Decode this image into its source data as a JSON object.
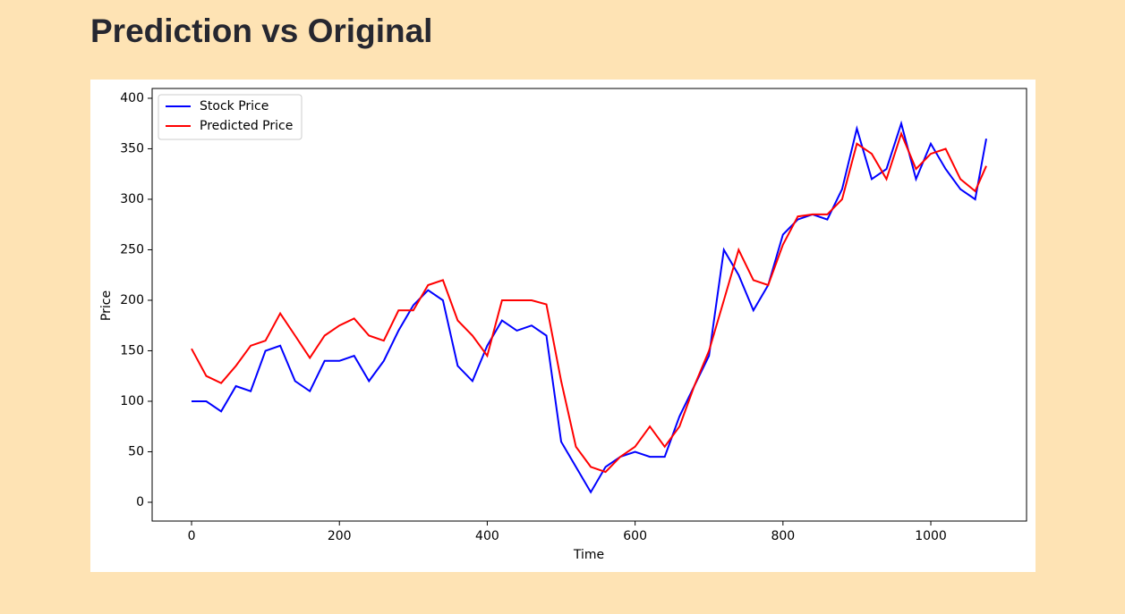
{
  "header": {
    "title": "Prediction vs Original"
  },
  "chart_data": {
    "type": "line",
    "x_label": "Time",
    "y_label": "Price",
    "x": [
      0,
      20,
      40,
      60,
      80,
      100,
      120,
      140,
      160,
      180,
      200,
      220,
      240,
      260,
      280,
      300,
      320,
      340,
      360,
      380,
      400,
      420,
      440,
      460,
      480,
      500,
      520,
      540,
      560,
      580,
      600,
      620,
      640,
      660,
      680,
      700,
      720,
      740,
      760,
      780,
      800,
      820,
      840,
      860,
      880,
      900,
      920,
      940,
      960,
      980,
      1000,
      1020,
      1040,
      1060,
      1075
    ],
    "series": [
      {
        "name": "Stock Price",
        "color": "#0000ff",
        "values": [
          100,
          100,
          90,
          115,
          110,
          150,
          155,
          120,
          110,
          140,
          140,
          145,
          120,
          140,
          170,
          195,
          210,
          200,
          135,
          120,
          155,
          180,
          170,
          175,
          165,
          60,
          35,
          10,
          35,
          45,
          50,
          45,
          45,
          85,
          115,
          145,
          250,
          225,
          190,
          215,
          265,
          280,
          285,
          280,
          310,
          370,
          320,
          330,
          375,
          320,
          355,
          330,
          310,
          300,
          360
        ]
      },
      {
        "name": "Predicted Price",
        "color": "#ff0000",
        "values": [
          152,
          125,
          118,
          135,
          155,
          160,
          187,
          165,
          143,
          165,
          175,
          182,
          165,
          160,
          190,
          190,
          215,
          220,
          180,
          165,
          145,
          200,
          200,
          200,
          196,
          120,
          55,
          35,
          30,
          45,
          55,
          75,
          55,
          75,
          115,
          150,
          200,
          250,
          220,
          215,
          255,
          283,
          285,
          285,
          300,
          355,
          345,
          320,
          365,
          330,
          345,
          350,
          320,
          308,
          333
        ]
      }
    ],
    "xlim": [
      -53.3,
      1129.5
    ],
    "xticks": [
      0,
      200,
      400,
      600,
      800,
      1000
    ],
    "ylim": [
      -18.6,
      409.7
    ],
    "yticks": [
      0,
      50,
      100,
      150,
      200,
      250,
      300,
      350,
      400
    ],
    "legend": "upper left"
  }
}
